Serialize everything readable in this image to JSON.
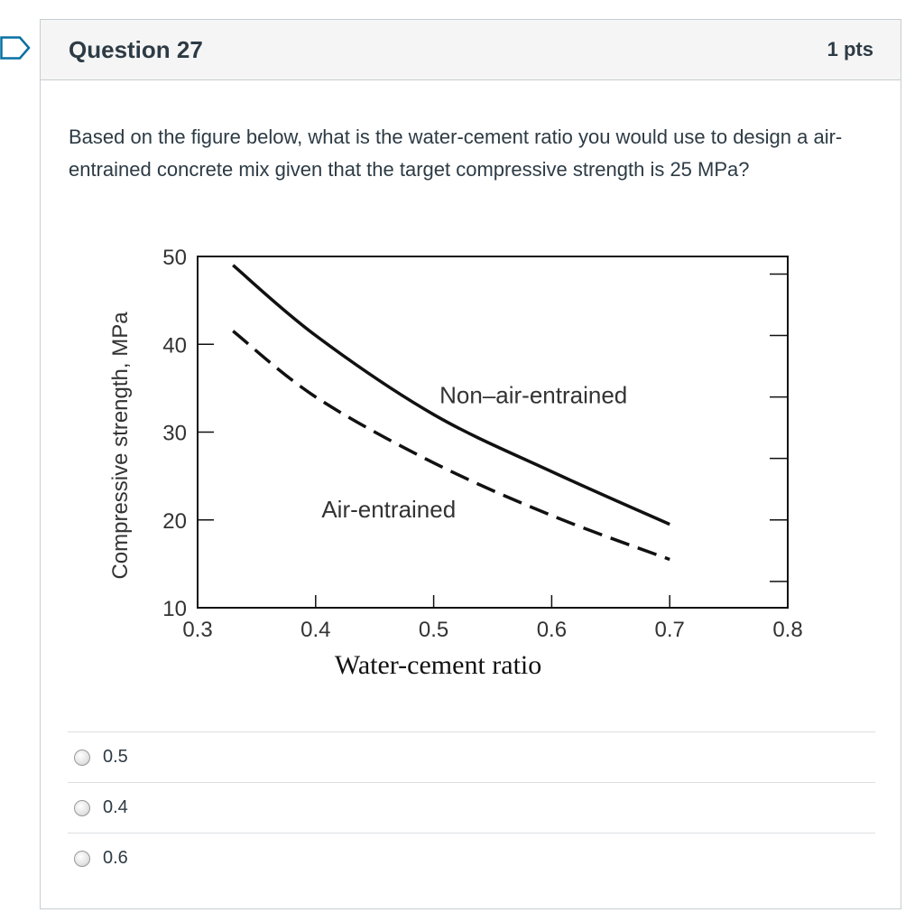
{
  "question": {
    "title": "Question 27",
    "points": "1 pts",
    "text": "Based on the figure below, what is the water-cement ratio you would use to design a air-entrained concrete mix given that the target compressive strength is 25 MPa?",
    "answers": [
      {
        "label": "0.5",
        "selected": false
      },
      {
        "label": "0.4",
        "selected": false
      },
      {
        "label": "0.6",
        "selected": false
      }
    ]
  },
  "chart_data": {
    "type": "line",
    "xlabel": "Water-cement ratio",
    "ylabel": "Compressive strength, MPa",
    "xlim": [
      0.3,
      0.8
    ],
    "ylim": [
      10,
      50
    ],
    "xticks": [
      "0.3",
      "0.4",
      "0.5",
      "0.6",
      "0.7",
      "0.8"
    ],
    "yticks": [
      "10",
      "20",
      "30",
      "40",
      "50"
    ],
    "series": [
      {
        "name": "Non–air-entrained",
        "style": "solid",
        "x": [
          0.33,
          0.4,
          0.5,
          0.6,
          0.7
        ],
        "y": [
          49,
          41,
          32,
          25.5,
          19.5
        ]
      },
      {
        "name": "Air-entrained",
        "style": "dashed",
        "x": [
          0.33,
          0.4,
          0.5,
          0.6,
          0.7
        ],
        "y": [
          41.5,
          34,
          26.5,
          20.5,
          15.5
        ]
      }
    ]
  }
}
